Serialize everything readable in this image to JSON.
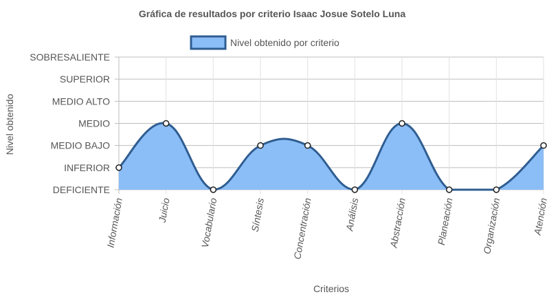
{
  "chart_data": {
    "type": "area",
    "title": "Gráfica de resultados por criterio Isaac Josue Sotelo Luna",
    "xlabel": "Criterios",
    "ylabel": "Nivel obtenido",
    "y_levels": [
      "DEFICIENTE",
      "INFERIOR",
      "MEDIO BAJO",
      "MEDIO",
      "MEDIO ALTO",
      "SUPERIOR",
      "SOBRESALIENTE"
    ],
    "ylim": [
      0,
      6
    ],
    "categories": [
      "Información",
      "Juicio",
      "Vocabulario",
      "Síntesis",
      "Concentración",
      "Análisis",
      "Abstracción",
      "Planeación",
      "Organización",
      "Atención"
    ],
    "series": [
      {
        "name": "Nivel obtenido por criterio",
        "values": [
          1,
          3,
          0,
          2,
          2,
          0,
          3,
          0,
          0,
          2
        ]
      }
    ],
    "legend_position": "top",
    "grid": true,
    "colors": {
      "fill": "#8bbdf6",
      "line": "#2f5d91",
      "point_fill": "#ffffff",
      "point_stroke": "#1f1f1f"
    }
  }
}
